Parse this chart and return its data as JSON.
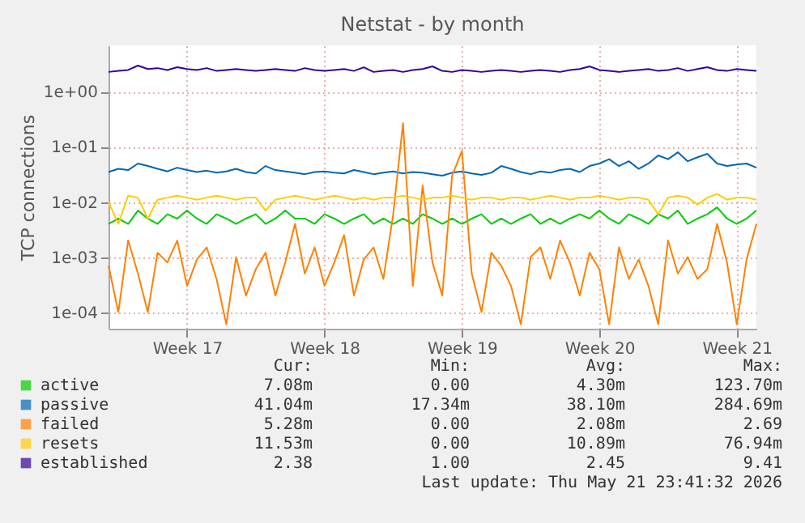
{
  "chart_data": {
    "type": "line",
    "title": "Netstat - by month",
    "ylabel": "TCP connections",
    "log": "y",
    "grid": true,
    "legend": "bottom",
    "categories": [
      null,
      null,
      null,
      null,
      null,
      null,
      null,
      null,
      "Week 17",
      null,
      null,
      null,
      null,
      null,
      null,
      null,
      null,
      null,
      null,
      null,
      null,
      null,
      "Week 18",
      null,
      null,
      null,
      null,
      null,
      null,
      null,
      null,
      null,
      null,
      null,
      null,
      null,
      "Week 19",
      null,
      null,
      null,
      null,
      null,
      null,
      null,
      null,
      null,
      null,
      null,
      null,
      null,
      "Week 20",
      null,
      null,
      null,
      null,
      null,
      null,
      null,
      null,
      null,
      null,
      null,
      null,
      null,
      "Week 21",
      null,
      null
    ],
    "ylim": [
      5e-05,
      7
    ],
    "yticks": [
      {
        "value": 0.0001,
        "label": "1e-04"
      },
      {
        "value": 0.001,
        "label": "1e-03"
      },
      {
        "value": 0.01,
        "label": "1e-02"
      },
      {
        "value": 0.1,
        "label": "1e-01"
      },
      {
        "value": 1,
        "label": "1e+00"
      }
    ],
    "series": [
      {
        "name": "active",
        "color": "#00cc00",
        "values": [
          0.004,
          0.005,
          0.004,
          0.007,
          0.005,
          0.004,
          0.006,
          0.005,
          0.007,
          0.005,
          0.004,
          0.006,
          0.005,
          0.004,
          0.005,
          0.006,
          0.004,
          0.005,
          0.007,
          0.005,
          0.005,
          0.004,
          0.006,
          0.005,
          0.004,
          0.005,
          0.006,
          0.004,
          0.005,
          0.004,
          0.005,
          0.004,
          0.006,
          0.005,
          0.004,
          0.005,
          0.004,
          0.005,
          0.006,
          0.004,
          0.005,
          0.004,
          0.005,
          0.006,
          0.004,
          0.005,
          0.004,
          0.005,
          0.006,
          0.005,
          0.007,
          0.005,
          0.004,
          0.006,
          0.005,
          0.004,
          0.006,
          0.005,
          0.007,
          0.004,
          0.005,
          0.006,
          0.008,
          0.005,
          0.004,
          0.005,
          0.007
        ]
      },
      {
        "name": "passive",
        "color": "#0066b3",
        "values": [
          0.035,
          0.04,
          0.038,
          0.05,
          0.045,
          0.04,
          0.036,
          0.042,
          0.038,
          0.035,
          0.037,
          0.034,
          0.036,
          0.04,
          0.035,
          0.033,
          0.045,
          0.038,
          0.036,
          0.034,
          0.032,
          0.035,
          0.036,
          0.034,
          0.033,
          0.038,
          0.035,
          0.032,
          0.034,
          0.036,
          0.033,
          0.035,
          0.034,
          0.032,
          0.03,
          0.034,
          0.036,
          0.033,
          0.031,
          0.034,
          0.045,
          0.04,
          0.035,
          0.032,
          0.036,
          0.034,
          0.038,
          0.04,
          0.035,
          0.045,
          0.05,
          0.06,
          0.045,
          0.055,
          0.04,
          0.05,
          0.07,
          0.06,
          0.08,
          0.055,
          0.065,
          0.075,
          0.05,
          0.045,
          0.048,
          0.05,
          0.042
        ]
      },
      {
        "name": "failed",
        "color": "#ff8000",
        "values": [
          0.0007,
          0.0001,
          0.002,
          0.0005,
          0.0001,
          0.0012,
          0.0008,
          0.002,
          0.0003,
          0.0009,
          0.0015,
          0.0004,
          6e-05,
          0.001,
          0.0002,
          0.0006,
          0.0012,
          0.0002,
          0.0008,
          0.004,
          0.0005,
          0.0015,
          0.0003,
          0.0008,
          0.0025,
          0.0002,
          0.0009,
          0.0015,
          0.0004,
          0.006,
          0.27,
          0.0003,
          0.02,
          0.0008,
          0.0002,
          0.03,
          0.085,
          0.0005,
          0.0001,
          0.0012,
          0.0007,
          0.0003,
          6e-05,
          0.001,
          0.0015,
          0.0004,
          0.002,
          0.0008,
          0.0002,
          0.0012,
          0.0006,
          6e-05,
          0.0015,
          0.0004,
          0.0009,
          0.0003,
          6e-05,
          0.002,
          0.0005,
          0.001,
          0.0004,
          0.0006,
          0.004,
          0.0008,
          6e-05,
          0.0009,
          0.004
        ]
      },
      {
        "name": "resets",
        "color": "#ffcc00",
        "values": [
          0.01,
          0.004,
          0.013,
          0.012,
          0.005,
          0.011,
          0.012,
          0.013,
          0.012,
          0.011,
          0.012,
          0.013,
          0.012,
          0.011,
          0.012,
          0.012,
          0.007,
          0.011,
          0.012,
          0.013,
          0.012,
          0.011,
          0.012,
          0.013,
          0.012,
          0.011,
          0.012,
          0.011,
          0.012,
          0.012,
          0.013,
          0.012,
          0.011,
          0.012,
          0.012,
          0.013,
          0.012,
          0.011,
          0.012,
          0.012,
          0.011,
          0.012,
          0.012,
          0.011,
          0.012,
          0.013,
          0.012,
          0.011,
          0.012,
          0.012,
          0.013,
          0.012,
          0.011,
          0.012,
          0.012,
          0.011,
          0.006,
          0.012,
          0.013,
          0.012,
          0.009,
          0.012,
          0.014,
          0.011,
          0.012,
          0.012,
          0.011
        ]
      },
      {
        "name": "established",
        "color": "#330099",
        "values": [
          2.3,
          2.4,
          2.5,
          3.0,
          2.6,
          2.7,
          2.5,
          2.8,
          2.6,
          2.5,
          2.7,
          2.4,
          2.5,
          2.6,
          2.5,
          2.4,
          2.5,
          2.6,
          2.5,
          2.4,
          2.7,
          2.5,
          2.4,
          2.5,
          2.6,
          2.4,
          2.8,
          2.3,
          2.4,
          2.5,
          2.3,
          2.5,
          2.6,
          2.9,
          2.4,
          2.3,
          2.5,
          2.4,
          2.3,
          2.4,
          2.5,
          2.4,
          2.3,
          2.4,
          2.5,
          2.4,
          2.3,
          2.5,
          2.6,
          2.9,
          2.5,
          2.4,
          2.3,
          2.4,
          2.5,
          2.6,
          2.4,
          2.5,
          2.7,
          2.4,
          2.6,
          2.8,
          2.5,
          2.4,
          2.6,
          2.5,
          2.4
        ]
      }
    ],
    "annotations": [
      "Cur:",
      "Min:",
      "Avg:",
      "Max:",
      "7.08m",
      "0.00",
      "4.30m",
      "123.70m",
      "41.04m",
      "17.34m",
      "38.10m",
      "284.69m",
      "5.28m",
      "0.00",
      "2.08m",
      "2.69",
      "11.53m",
      "0.00",
      "10.89m",
      "76.94m",
      "2.38",
      "1.00",
      "2.45",
      "9.41",
      "Last update: Thu May 21 23:41:32 2026"
    ]
  }
}
